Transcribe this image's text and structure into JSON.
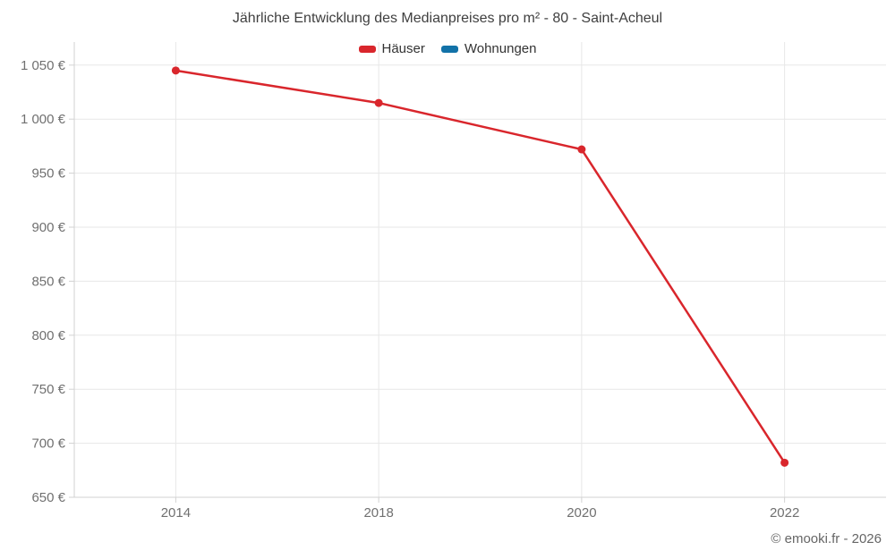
{
  "header": {
    "title": "Jährliche Entwicklung des Medianpreises pro m² - 80 - Saint-Acheul"
  },
  "footer": {
    "credit": "© emooki.fr - 2026"
  },
  "colors": {
    "hauser_red": "#d9262c",
    "wohnungen_blue": "#1272a8",
    "gridline": "#e7e7e7",
    "axis_line": "#d2d2d2",
    "tick_label": "#707070",
    "title_text": "#3f3f3f",
    "footer_text": "#666666"
  },
  "chart_data": {
    "type": "line",
    "title": "Jährliche Entwicklung des Medianpreises pro m² - 80 - Saint-Acheul",
    "categories": [
      "2014",
      "2018",
      "2020",
      "2022"
    ],
    "series": [
      {
        "name": "Häuser",
        "color": "#d9262c",
        "values": [
          1045,
          1015,
          972,
          682
        ]
      },
      {
        "name": "Wohnungen",
        "color": "#1272a8",
        "values": []
      }
    ],
    "xlabel": "",
    "ylabel": "",
    "ylim": [
      650,
      1050
    ],
    "y_ticks": [
      650,
      700,
      750,
      800,
      850,
      900,
      950,
      1000,
      1050
    ],
    "y_tick_labels": [
      "650 €",
      "700 €",
      "750 €",
      "800 €",
      "850 €",
      "900 €",
      "950 €",
      "1 000 €",
      "1 050 €"
    ],
    "grid": true,
    "legend_position": "top",
    "marker": "circle",
    "currency_suffix": "€"
  }
}
